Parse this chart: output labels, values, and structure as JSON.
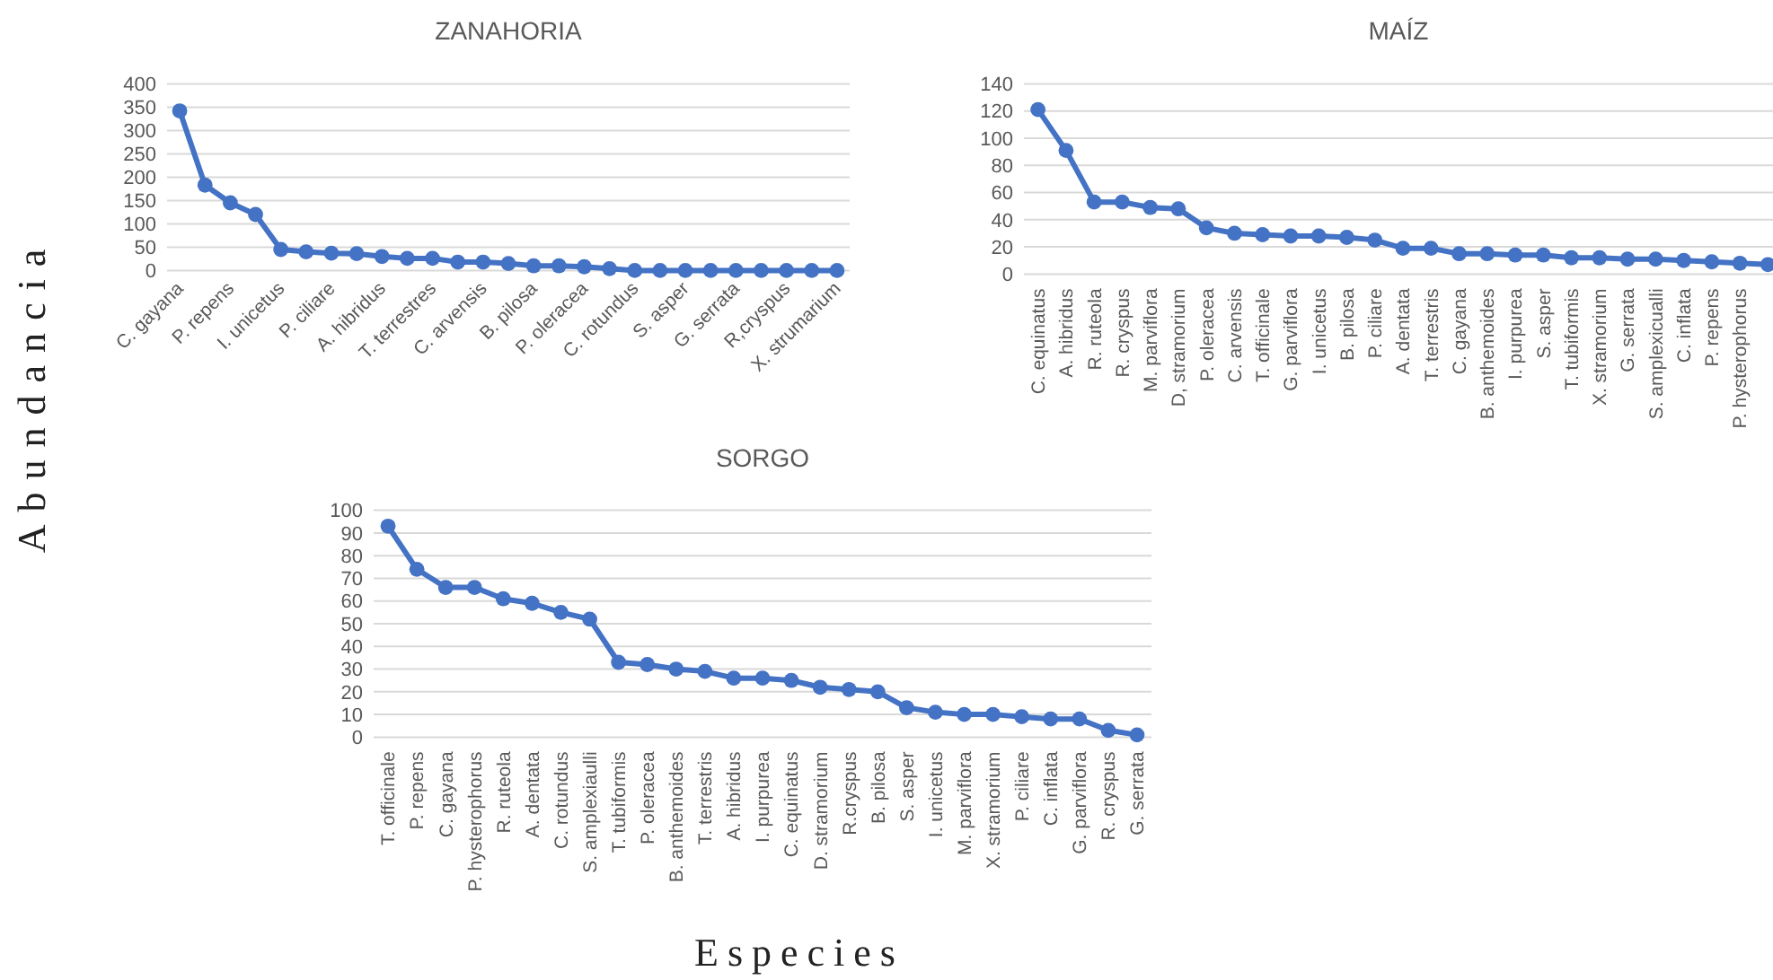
{
  "chart_data": [
    {
      "type": "line",
      "title": "ZANAHORIA",
      "ylabel": "Abundancia",
      "categories": [
        "C. gayana",
        null,
        "P. repens",
        null,
        "I. unicetus",
        null,
        "P. ciliare",
        null,
        "A. hibridus",
        null,
        "T. terrestres",
        null,
        "C. arvensis",
        null,
        "B. pilosa",
        null,
        "P. oleracea",
        null,
        "C. rotundus",
        null,
        "S. asper",
        null,
        "G. serrata",
        null,
        "R,cryspus",
        null,
        "X. strumarium"
      ],
      "values": [
        342,
        183,
        145,
        120,
        45,
        40,
        37,
        36,
        30,
        26,
        26,
        18,
        18,
        15,
        10,
        10,
        8,
        4,
        0,
        0,
        0,
        0,
        0,
        0,
        0,
        0,
        0
      ],
      "color": "#4472c4",
      "marker": "circle",
      "ylim": [
        0,
        400
      ],
      "yticks": [
        0,
        50,
        100,
        150,
        200,
        250,
        300,
        350,
        400
      ],
      "grid": "y"
    },
    {
      "type": "line",
      "title": "MAÍZ",
      "categories": [
        "C. equinatus",
        "A. hibridus",
        "R. ruteola",
        "R. cryspus",
        "M. parviflora",
        "D, stramorium",
        "P. oleracea",
        "C. arvensis",
        "T. officinale",
        "G. parviflora",
        "I. unicetus",
        "B. pilosa",
        "P. ciliare",
        "A. dentata",
        "T. terrestris",
        "C. gayana",
        "B. anthemoides",
        "I. purpurea",
        "S. asper",
        "T. tubiformis",
        "X. stramorium",
        "G. serrata",
        "S. amplexicualli",
        "C. inflata",
        "P. repens",
        "P. hysterophorus",
        null
      ],
      "values": [
        121,
        91,
        53,
        53,
        49,
        48,
        34,
        30,
        29,
        28,
        28,
        27,
        25,
        19,
        19,
        15,
        15,
        14,
        14,
        12,
        12,
        11,
        11,
        10,
        9,
        8,
        7
      ],
      "color": "#4472c4",
      "marker": "circle",
      "ylim": [
        0,
        140
      ],
      "yticks": [
        0,
        20,
        40,
        60,
        80,
        100,
        120,
        140
      ],
      "grid": "y"
    },
    {
      "type": "line",
      "title": "SORGO",
      "xlabel": "Especies",
      "categories": [
        "T. officinale",
        "P. repens",
        "C. gayana",
        "P. hysterophorus",
        "R. ruteola",
        "A. dentata",
        "C. rotundus",
        "S. amplexiaulli",
        "T. tubiformis",
        "P. oleracea",
        "B. anthemoides",
        "T. terrestris",
        "A. hibridus",
        "I. purpurea",
        "C. equinatus",
        "D. stramorium",
        "R.cryspus",
        "B. pilosa",
        "S. asper",
        "I. unicetus",
        "M. parviflora",
        "X. stramorium",
        "P. ciliare",
        "C. inflata",
        "G. parviflora",
        "R. cryspus",
        "G. serrata"
      ],
      "values": [
        93,
        74,
        66,
        66,
        61,
        59,
        55,
        52,
        33,
        32,
        30,
        29,
        26,
        26,
        25,
        22,
        21,
        20,
        13,
        11,
        10,
        10,
        9,
        8,
        8,
        3,
        1
      ],
      "color": "#4472c4",
      "marker": "circle",
      "ylim": [
        0,
        100
      ],
      "yticks": [
        0,
        10,
        20,
        30,
        40,
        50,
        60,
        70,
        80,
        90,
        100
      ],
      "grid": "y"
    }
  ]
}
